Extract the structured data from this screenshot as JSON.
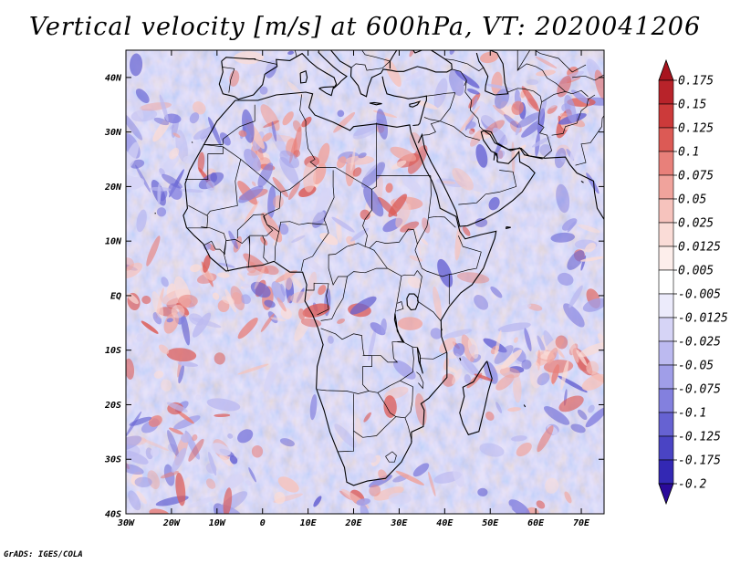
{
  "title": "Vertical velocity [m/s] at 600hPa, VT: 2020041206",
  "credit": "GrADS: IGES/COLA",
  "map": {
    "lon_range": [
      -30,
      75
    ],
    "lat_range": [
      -40,
      45
    ],
    "field": "vertical velocity",
    "level": "600hPa",
    "lat_ticks": [
      {
        "lat": 40,
        "label": "40N"
      },
      {
        "lat": 30,
        "label": "30N"
      },
      {
        "lat": 20,
        "label": "20N"
      },
      {
        "lat": 10,
        "label": "10N"
      },
      {
        "lat": 0,
        "label": "EQ"
      },
      {
        "lat": -10,
        "label": "10S"
      },
      {
        "lat": -20,
        "label": "20S"
      },
      {
        "lat": -30,
        "label": "30S"
      },
      {
        "lat": -40,
        "label": "40S"
      }
    ],
    "lon_ticks": [
      {
        "lon": -30,
        "label": "30W"
      },
      {
        "lon": -20,
        "label": "20W"
      },
      {
        "lon": -10,
        "label": "10W"
      },
      {
        "lon": 0,
        "label": "0"
      },
      {
        "lon": 10,
        "label": "10E"
      },
      {
        "lon": 20,
        "label": "20E"
      },
      {
        "lon": 30,
        "label": "30E"
      },
      {
        "lon": 40,
        "label": "40E"
      },
      {
        "lon": 50,
        "label": "50E"
      },
      {
        "lon": 60,
        "label": "60E"
      },
      {
        "lon": 70,
        "label": "70E"
      }
    ]
  },
  "colorbar": {
    "top_color": "#a8141e",
    "bottom_color": "#2a0a9a",
    "bins": [
      {
        "label": "0.175",
        "color": "#b8232a"
      },
      {
        "label": "0.15",
        "color": "#cc3a3a"
      },
      {
        "label": "0.125",
        "color": "#dc5a55"
      },
      {
        "label": "0.1",
        "color": "#e8807a"
      },
      {
        "label": "0.075",
        "color": "#f0a39c"
      },
      {
        "label": "0.05",
        "color": "#f6c3bd"
      },
      {
        "label": "0.025",
        "color": "#fadcd7"
      },
      {
        "label": "0.0125",
        "color": "#fdeeeb"
      },
      {
        "label": "0.005",
        "color": "#ffffff"
      },
      {
        "label": "-0.005",
        "color": "#ecebfb"
      },
      {
        "label": "-0.0125",
        "color": "#d6d4f6"
      },
      {
        "label": "-0.025",
        "color": "#bcbaf0"
      },
      {
        "label": "-0.05",
        "color": "#a09ee8"
      },
      {
        "label": "-0.075",
        "color": "#8380de"
      },
      {
        "label": "-0.1",
        "color": "#6662d2"
      },
      {
        "label": "-0.125",
        "color": "#4a44c4"
      },
      {
        "label": "-0.175",
        "color": "#3328b4"
      },
      {
        "label": "-0.2",
        "color": null
      }
    ]
  }
}
